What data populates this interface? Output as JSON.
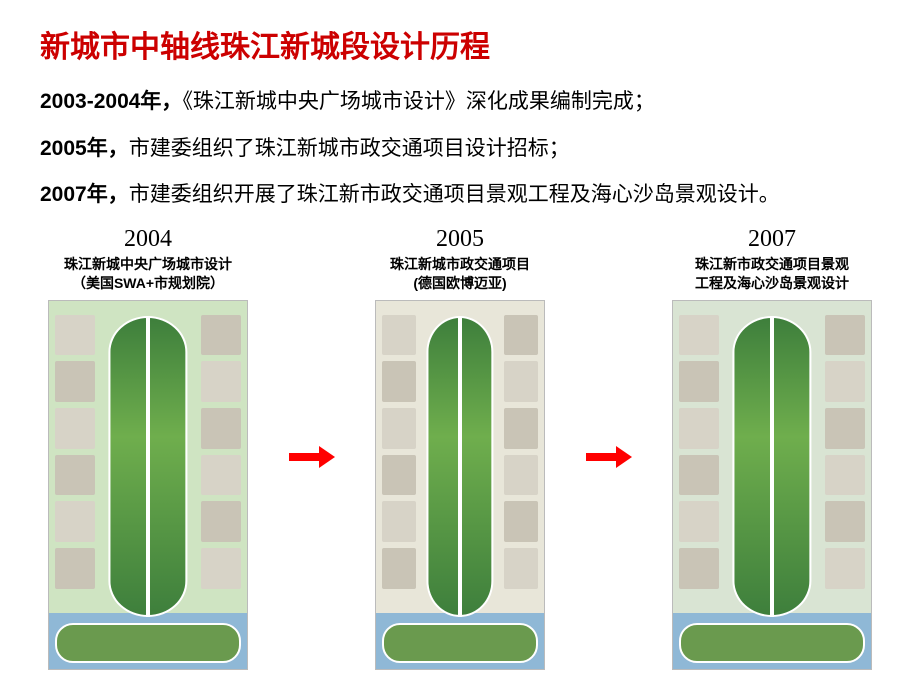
{
  "colors": {
    "title": "#cc0000",
    "body": "#000000",
    "caption": "#000000",
    "yearLabel": "#000000",
    "arrow": "#ff0000",
    "planBg1": "#cfe4c2",
    "planBg2": "#e8e6d9",
    "planBg3": "#d9e4d3",
    "axisGreen": "#3e7f3c",
    "water": "#8fb8d6",
    "islandGreen": "#6a9a4e",
    "block": "#d7d3c7",
    "blockAlt": "#c9c4b6",
    "road": "#ffffff"
  },
  "title": "新城市中轴线珠江新城段设计历程",
  "paragraphs": [
    {
      "year": "2003-2004年，",
      "text": "《珠江新城中央广场城市设计》深化成果编制完成；"
    },
    {
      "year": "2005年，",
      "text": "市建委组织了珠江新城市政交通项目设计招标；"
    },
    {
      "year": "2007年，",
      "text": "市建委组织开展了珠江新市政交通项目景观工程及海心沙岛景观设计。"
    }
  ],
  "columns": [
    {
      "year": "2004",
      "captionLine1": "珠江新城中央广场城市设计",
      "captionLine2": "（美国SWA+市规划院）"
    },
    {
      "year": "2005",
      "captionLine1": "珠江新城市政交通项目",
      "captionLine2": "(德国欧博迈亚)"
    },
    {
      "year": "2007",
      "captionLine1": "珠江新市政交通项目景观",
      "captionLine2": "工程及海心沙岛景观设计"
    }
  ]
}
